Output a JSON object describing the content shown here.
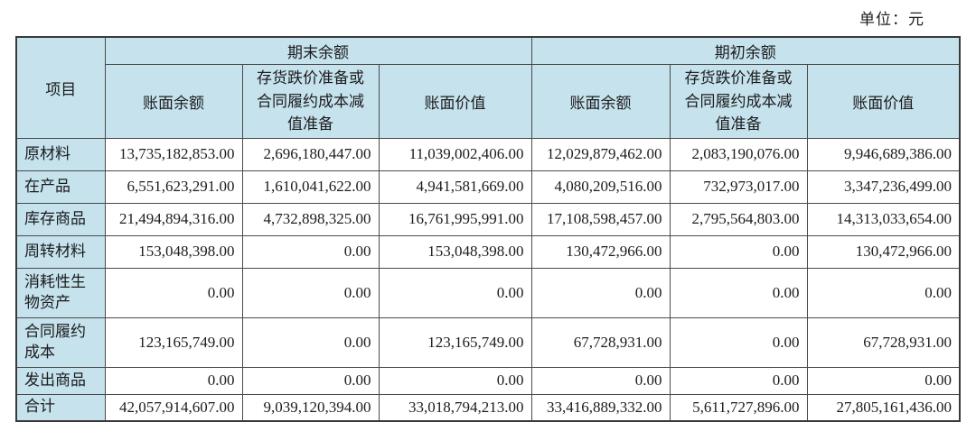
{
  "page": {
    "unit_label": "单位：元"
  },
  "colors": {
    "header_bg": "#c5e2ed",
    "border": "#4a4a4a",
    "border_outer": "#3a3a3a",
    "text": "#1c1c1c"
  },
  "table": {
    "item_header": "项目",
    "group_headers": {
      "ending": "期末余额",
      "beginning": "期初余额"
    },
    "sub_headers": {
      "book_balance": "账面余额",
      "provision": "存货跌价准备或\n合同履约成本减\n值准备",
      "book_value": "账面价值"
    },
    "rows": [
      {
        "label": "原材料",
        "ending": {
          "book_balance": "13,735,182,853.00",
          "provision": "2,696,180,447.00",
          "book_value": "11,039,002,406.00"
        },
        "beginning": {
          "book_balance": "12,029,879,462.00",
          "provision": "2,083,190,076.00",
          "book_value": "9,946,689,386.00"
        }
      },
      {
        "label": "在产品",
        "ending": {
          "book_balance": "6,551,623,291.00",
          "provision": "1,610,041,622.00",
          "book_value": "4,941,581,669.00"
        },
        "beginning": {
          "book_balance": "4,080,209,516.00",
          "provision": "732,973,017.00",
          "book_value": "3,347,236,499.00"
        }
      },
      {
        "label": "库存商品",
        "ending": {
          "book_balance": "21,494,894,316.00",
          "provision": "4,732,898,325.00",
          "book_value": "16,761,995,991.00"
        },
        "beginning": {
          "book_balance": "17,108,598,457.00",
          "provision": "2,795,564,803.00",
          "book_value": "14,313,033,654.00"
        }
      },
      {
        "label": "周转材料",
        "ending": {
          "book_balance": "153,048,398.00",
          "provision": "0.00",
          "book_value": "153,048,398.00"
        },
        "beginning": {
          "book_balance": "130,472,966.00",
          "provision": "0.00",
          "book_value": "130,472,966.00"
        }
      },
      {
        "label": "消耗性生\n物资产",
        "ending": {
          "book_balance": "0.00",
          "provision": "0.00",
          "book_value": "0.00"
        },
        "beginning": {
          "book_balance": "0.00",
          "provision": "0.00",
          "book_value": "0.00"
        }
      },
      {
        "label": "合同履约\n成本",
        "ending": {
          "book_balance": "123,165,749.00",
          "provision": "0.00",
          "book_value": "123,165,749.00"
        },
        "beginning": {
          "book_balance": "67,728,931.00",
          "provision": "0.00",
          "book_value": "67,728,931.00"
        }
      },
      {
        "label": "发出商品",
        "ending": {
          "book_balance": "0.00",
          "provision": "0.00",
          "book_value": "0.00"
        },
        "beginning": {
          "book_balance": "0.00",
          "provision": "0.00",
          "book_value": "0.00"
        }
      },
      {
        "label": "合计",
        "ending": {
          "book_balance": "42,057,914,607.00",
          "provision": "9,039,120,394.00",
          "book_value": "33,018,794,213.00"
        },
        "beginning": {
          "book_balance": "33,416,889,332.00",
          "provision": "5,611,727,896.00",
          "book_value": "27,805,161,436.00"
        }
      }
    ]
  }
}
